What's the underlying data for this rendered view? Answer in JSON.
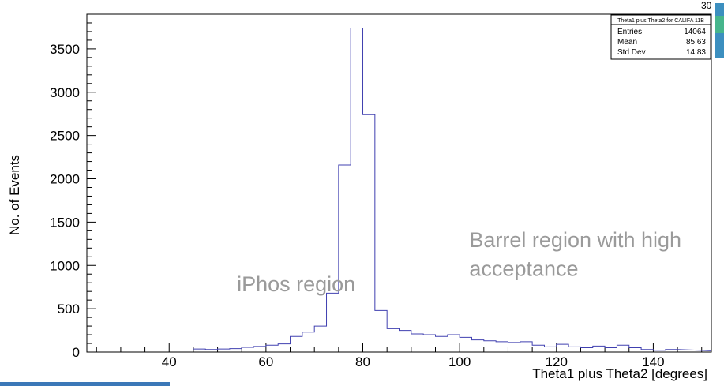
{
  "chart_data": {
    "type": "bar",
    "histogram": true,
    "title": "",
    "xlabel": "Theta1 plus Theta2 [degrees]",
    "ylabel": "No. of Events",
    "xlim": [
      23,
      152
    ],
    "ylim": [
      0,
      3900
    ],
    "x_ticks": [
      40,
      60,
      80,
      100,
      120,
      140
    ],
    "y_ticks": [
      0,
      500,
      1000,
      1500,
      2000,
      2500,
      3000,
      3500
    ],
    "bin_width": 2.5,
    "bin_start": 45,
    "values": [
      35,
      30,
      35,
      40,
      55,
      65,
      80,
      95,
      180,
      230,
      300,
      680,
      2160,
      3740,
      2740,
      480,
      270,
      250,
      210,
      200,
      180,
      200,
      170,
      140,
      130,
      120,
      110,
      120,
      80,
      60,
      90,
      60,
      50,
      70,
      50,
      80,
      50,
      30,
      20,
      30
    ],
    "grid": false,
    "line_color": "#4040b0",
    "annotations": [
      {
        "text": "iPhos region",
        "x": 54,
        "y": 700
      },
      {
        "text": "Barrel region with high",
        "x": 102,
        "y": 1210
      },
      {
        "text": "acceptance",
        "x": 102,
        "y": 880
      }
    ],
    "stats_box": {
      "title": "Theta1 plus Theta2 for CALIFA 11B",
      "rows": [
        {
          "label": "Entries",
          "value": "14064"
        },
        {
          "label": "Mean",
          "value": "85.63"
        },
        {
          "label": "Std Dev",
          "value": "14.83"
        }
      ]
    },
    "corner_label": "30"
  }
}
